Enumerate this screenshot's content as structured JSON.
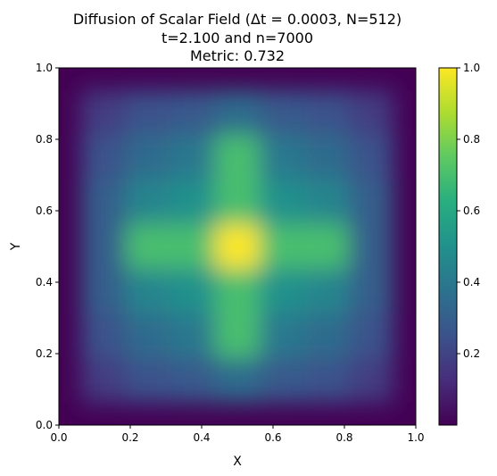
{
  "chart_data": {
    "type": "heatmap",
    "title_lines": [
      "Diffusion of Scalar Field (Δt = 0.0003, N=512)",
      "t=2.100 and n=7000",
      "Metric: 0.732"
    ],
    "xlabel": "X",
    "ylabel": "Y",
    "xlim": [
      0.0,
      1.0
    ],
    "ylim": [
      0.0,
      1.0
    ],
    "x_ticks": [
      "0.0",
      "0.2",
      "0.4",
      "0.6",
      "0.8",
      "1.0"
    ],
    "y_ticks": [
      "0.0",
      "0.2",
      "0.4",
      "0.6",
      "0.8",
      "1.0"
    ],
    "colormap": "viridis",
    "color_range": [
      0.0,
      1.0
    ],
    "colorbar_ticks": [
      "0.2",
      "0.4",
      "0.6",
      "0.8",
      "1.0"
    ],
    "colorbar_tick_values": [
      0.2,
      0.4,
      0.6,
      0.8,
      1.0
    ],
    "field_samples": {
      "x": [
        0.125,
        0.25,
        0.375,
        0.5,
        0.625,
        0.75,
        0.875
      ],
      "y": [
        0.125,
        0.25,
        0.375,
        0.5,
        0.625,
        0.75,
        0.875
      ],
      "rows_bottom_to_top": [
        [
          0.18,
          0.25,
          0.28,
          0.35,
          0.28,
          0.25,
          0.18
        ],
        [
          0.25,
          0.35,
          0.4,
          0.7,
          0.4,
          0.35,
          0.25
        ],
        [
          0.3,
          0.45,
          0.5,
          0.7,
          0.5,
          0.45,
          0.3
        ],
        [
          0.3,
          0.7,
          0.7,
          1.0,
          0.7,
          0.7,
          0.3
        ],
        [
          0.3,
          0.45,
          0.5,
          0.7,
          0.5,
          0.45,
          0.3
        ],
        [
          0.25,
          0.35,
          0.4,
          0.7,
          0.4,
          0.35,
          0.25
        ],
        [
          0.18,
          0.25,
          0.28,
          0.35,
          0.28,
          0.25,
          0.18
        ]
      ]
    },
    "grid": false
  }
}
